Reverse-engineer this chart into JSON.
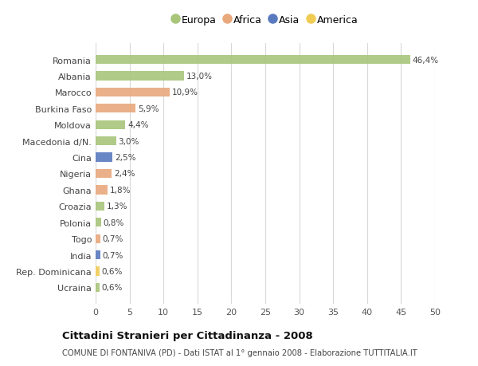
{
  "countries": [
    "Romania",
    "Albania",
    "Marocco",
    "Burkina Faso",
    "Moldova",
    "Macedonia d/N.",
    "Cina",
    "Nigeria",
    "Ghana",
    "Croazia",
    "Polonia",
    "Togo",
    "India",
    "Rep. Dominicana",
    "Ucraina"
  ],
  "values": [
    46.4,
    13.0,
    10.9,
    5.9,
    4.4,
    3.0,
    2.5,
    2.4,
    1.8,
    1.3,
    0.8,
    0.7,
    0.7,
    0.6,
    0.6
  ],
  "labels": [
    "46,4%",
    "13,0%",
    "10,9%",
    "5,9%",
    "4,4%",
    "3,0%",
    "2,5%",
    "2,4%",
    "1,8%",
    "1,3%",
    "0,8%",
    "0,7%",
    "0,7%",
    "0,6%",
    "0,6%"
  ],
  "continent": [
    "Europa",
    "Europa",
    "Africa",
    "Africa",
    "Europa",
    "Europa",
    "Asia",
    "Africa",
    "Africa",
    "Europa",
    "Europa",
    "Africa",
    "Asia",
    "America",
    "Europa"
  ],
  "colors": {
    "Europa": "#a8c57a",
    "Africa": "#e8a87c",
    "Asia": "#5a7abf",
    "America": "#f0cc55"
  },
  "legend_order": [
    "Europa",
    "Africa",
    "Asia",
    "America"
  ],
  "xlim": [
    0,
    50
  ],
  "xticks": [
    0,
    5,
    10,
    15,
    20,
    25,
    30,
    35,
    40,
    45,
    50
  ],
  "title": "Cittadini Stranieri per Cittadinanza - 2008",
  "subtitle": "COMUNE DI FONTANIVA (PD) - Dati ISTAT al 1° gennaio 2008 - Elaborazione TUTTITALIA.IT",
  "bg_color": "#ffffff",
  "grid_color": "#d8d8d8",
  "bar_height": 0.55
}
